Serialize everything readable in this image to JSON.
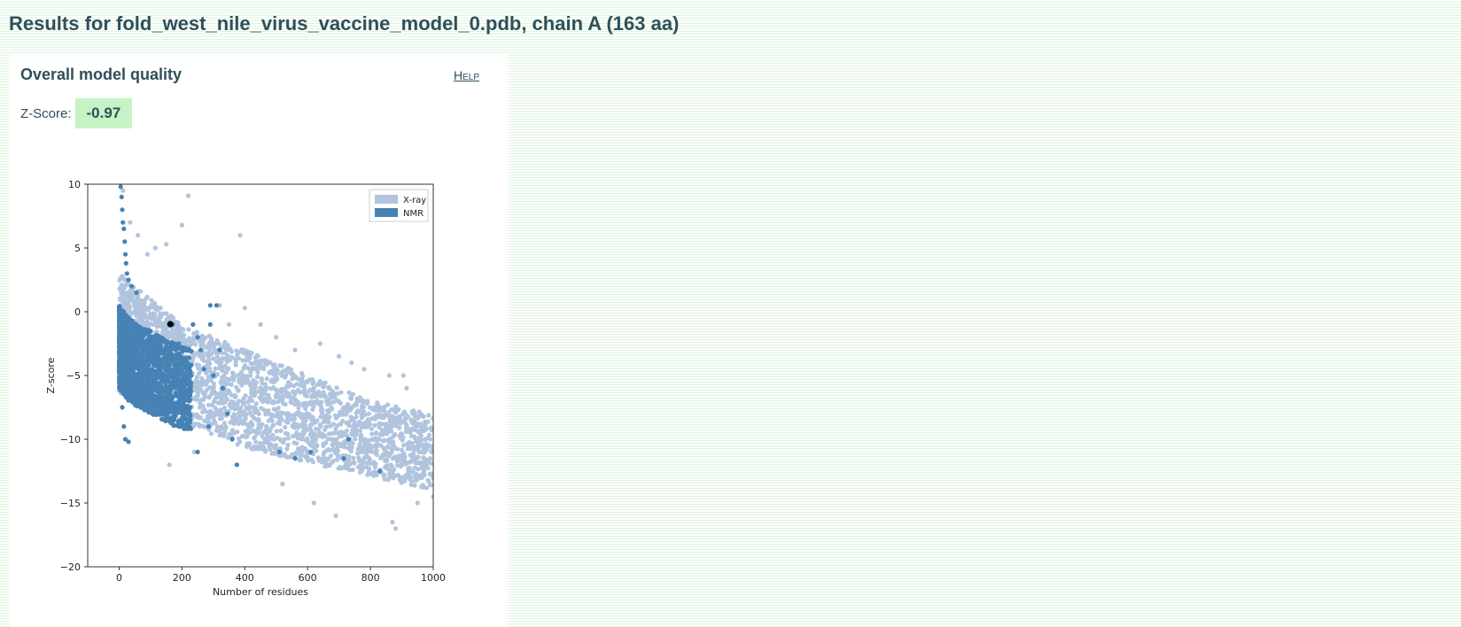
{
  "page": {
    "title": "Results for fold_west_nile_virus_vaccine_model_0.pdb, chain A (163 aa)"
  },
  "panel": {
    "title": "Overall model quality",
    "help_label": "Help",
    "zscore_label": "Z-Score:",
    "zscore_value": "-0.97",
    "zscore_badge_color": "#c6f3c6"
  },
  "chart_data": {
    "type": "scatter",
    "title": "",
    "xlabel": "Number of residues",
    "ylabel": "Z-score",
    "xlim": [
      -100,
      1000
    ],
    "ylim": [
      -20,
      10
    ],
    "xticks": [
      0,
      200,
      400,
      600,
      800,
      1000
    ],
    "yticks": [
      10,
      5,
      0,
      -5,
      -10,
      -15,
      -20
    ],
    "legend_position": "top-right",
    "grid": false,
    "series": [
      {
        "name": "X-ray",
        "color": "#b0c4de",
        "description_band": [
          [
            0,
            3,
            -8
          ],
          [
            100,
            1,
            -9
          ],
          [
            200,
            -1,
            -10
          ],
          [
            300,
            -2,
            -11
          ],
          [
            400,
            -3,
            -12
          ],
          [
            500,
            -4,
            -12.5
          ],
          [
            600,
            -5,
            -13
          ],
          [
            700,
            -6,
            -13.5
          ],
          [
            800,
            -7,
            -14
          ],
          [
            900,
            -7.5,
            -14.5
          ],
          [
            1000,
            -8,
            -15
          ]
        ],
        "outliers": [
          [
            12,
            9.5
          ],
          [
            35,
            7
          ],
          [
            60,
            6
          ],
          [
            90,
            4.5
          ],
          [
            115,
            5
          ],
          [
            150,
            5.3
          ],
          [
            200,
            6.8
          ],
          [
            220,
            9.1
          ],
          [
            385,
            6
          ],
          [
            320,
            0.5
          ],
          [
            350,
            -1
          ],
          [
            400,
            0.3
          ],
          [
            450,
            -1
          ],
          [
            500,
            -2
          ],
          [
            560,
            -3
          ],
          [
            640,
            -2.5
          ],
          [
            700,
            -3.5
          ],
          [
            740,
            -4
          ],
          [
            780,
            -4.5
          ],
          [
            860,
            -5
          ],
          [
            905,
            -5
          ],
          [
            915,
            -6
          ],
          [
            935,
            -8
          ],
          [
            960,
            -9
          ],
          [
            990,
            -10
          ],
          [
            160,
            -12
          ],
          [
            620,
            -15
          ],
          [
            690,
            -16
          ],
          [
            870,
            -16.5
          ],
          [
            880,
            -17
          ],
          [
            1000,
            -14.5
          ],
          [
            950,
            -15
          ],
          [
            240,
            -11
          ],
          [
            520,
            -13.5
          ]
        ]
      },
      {
        "name": "NMR",
        "color": "#4682b4",
        "description_band": [
          [
            0,
            0.5,
            -6
          ],
          [
            30,
            -0.5,
            -7
          ],
          [
            60,
            -1,
            -7.5
          ],
          [
            100,
            -1.5,
            -8
          ],
          [
            140,
            -2,
            -8.5
          ],
          [
            180,
            -2.5,
            -9
          ],
          [
            230,
            -3,
            -9.5
          ]
        ],
        "outliers": [
          [
            5,
            9.8
          ],
          [
            8,
            9
          ],
          [
            10,
            8
          ],
          [
            12,
            7
          ],
          [
            15,
            6.5
          ],
          [
            18,
            5.5
          ],
          [
            20,
            4.5
          ],
          [
            22,
            3.8
          ],
          [
            25,
            3
          ],
          [
            30,
            2.5
          ],
          [
            40,
            2
          ],
          [
            55,
            1.5
          ],
          [
            5,
            -6
          ],
          [
            10,
            -7.5
          ],
          [
            15,
            -9
          ],
          [
            20,
            -10
          ],
          [
            30,
            -10.2
          ],
          [
            170,
            -1
          ],
          [
            190,
            -2.5
          ],
          [
            250,
            -2
          ],
          [
            270,
            -4.5
          ],
          [
            290,
            -1
          ],
          [
            300,
            -5
          ],
          [
            320,
            -3
          ],
          [
            330,
            -6
          ],
          [
            345,
            -8
          ],
          [
            360,
            -10
          ],
          [
            375,
            -12
          ],
          [
            250,
            -11
          ],
          [
            285,
            -9
          ],
          [
            510,
            -11
          ],
          [
            560,
            -11.5
          ],
          [
            610,
            -11
          ],
          [
            715,
            -11.5
          ],
          [
            730,
            -10
          ],
          [
            830,
            -12.5
          ],
          [
            290,
            0.5
          ],
          [
            310,
            0.5
          ],
          [
            235,
            -1
          ],
          [
            260,
            -3
          ]
        ]
      },
      {
        "name": "",
        "color": "#000000",
        "points": [
          [
            163,
            -0.97
          ]
        ]
      }
    ]
  }
}
